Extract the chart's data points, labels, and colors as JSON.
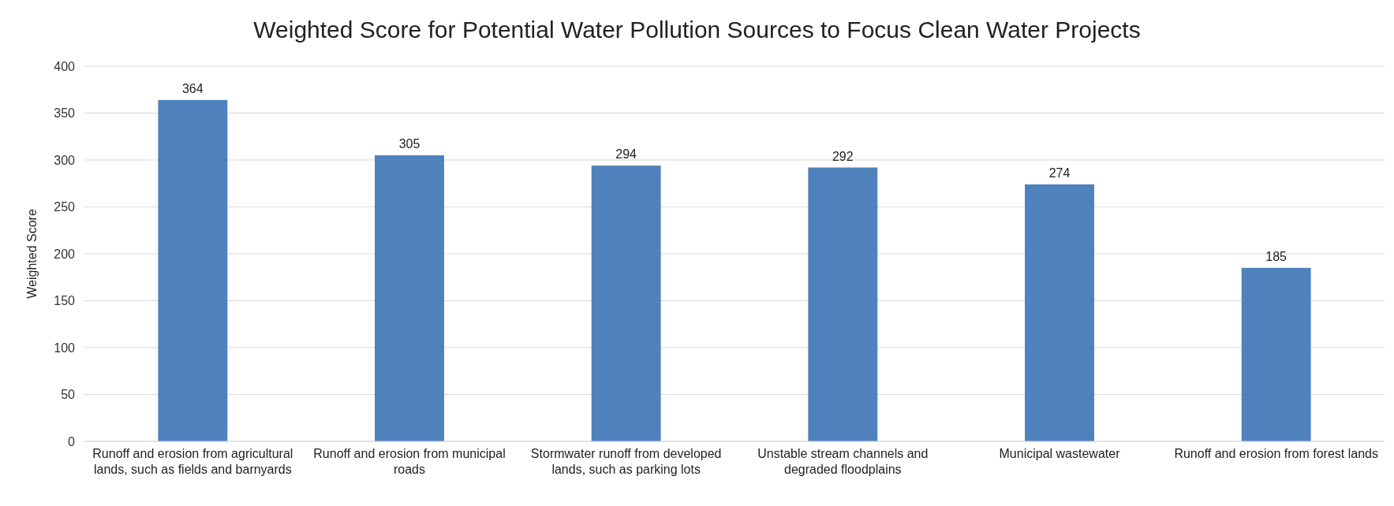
{
  "chart_data": {
    "type": "bar",
    "title": "Weighted Score for Potential Water Pollution Sources to Focus Clean Water Projects",
    "ylabel": "Weighted Score",
    "categories": [
      "Runoff and erosion from agricultural lands, such as fields and barnyards",
      "Runoff and erosion from municipal roads",
      "Stormwater runoff from developed lands, such as parking lots",
      "Unstable stream channels and degraded floodplains",
      "Municipal wastewater",
      "Runoff and erosion from forest lands"
    ],
    "values": [
      364,
      305,
      294,
      292,
      274,
      185
    ],
    "color": "#4f81bd",
    "ylim": [
      0,
      400
    ],
    "yticks": [
      0,
      50,
      100,
      150,
      200,
      250,
      300,
      350,
      400
    ],
    "grid": "y",
    "data_labels": true
  }
}
